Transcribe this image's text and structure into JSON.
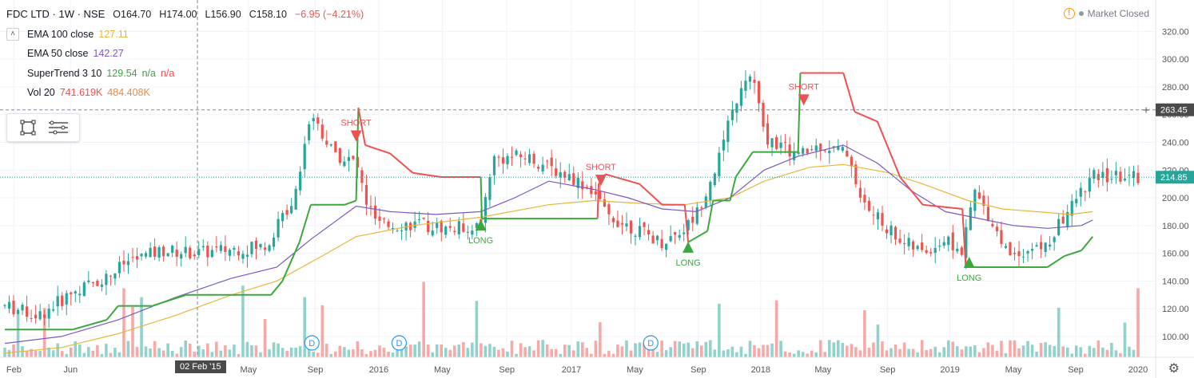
{
  "header": {
    "symbol": "FDC LTD · 1W · NSE",
    "open": "O164.70",
    "high": "H174.00",
    "low": "L156.90",
    "close": "C158.10",
    "change": "−6.95 (−4.21%)"
  },
  "indicators": [
    {
      "label": "EMA 100 close",
      "value": "127.11",
      "color": "#e3b43c"
    },
    {
      "label": "EMA 50 close",
      "value": "142.27",
      "color": "#7e57c2"
    },
    {
      "label": "SuperTrend 3 10",
      "value": "129.54",
      "extra": "n/a",
      "extra2": "n/a",
      "color": "#3ca83c",
      "color2": "#f05050"
    },
    {
      "label": "Vol 20",
      "value": "741.619K",
      "value2": "484.408K",
      "color": "#f05050",
      "color2": "#f0883c"
    }
  ],
  "status": {
    "text": "Market Closed"
  },
  "crosshair": {
    "date_label": "02 Feb '15",
    "price_label": "263.45"
  },
  "colors": {
    "up": "#26a69a",
    "down": "#ef5350",
    "st_up": "#3ca83c",
    "st_down": "#f05050",
    "ema50": "#7e57c2",
    "ema100": "#e8b53a"
  },
  "chart_data": {
    "type": "candlestick",
    "y_ticks": [
      "320.00",
      "300.00",
      "280.00",
      "260.00",
      "240.00",
      "220.00",
      "200.00",
      "180.00",
      "160.00",
      "140.00",
      "120.00",
      "100.00"
    ],
    "ylim": [
      85,
      330
    ],
    "x_ticks": [
      "Feb",
      "Jun",
      "02 Feb '15",
      "May",
      "Sep",
      "2016",
      "May",
      "Sep",
      "2017",
      "May",
      "Sep",
      "2018",
      "May",
      "Sep",
      "2019",
      "May",
      "Sep",
      "2020"
    ],
    "last_price": "214.85",
    "annotations": [
      {
        "text": "SHORT",
        "kind": "short",
        "t": 0.31,
        "price": 244
      },
      {
        "text": "LONG",
        "kind": "long",
        "t": 0.42,
        "price": 181
      },
      {
        "text": "SHORT",
        "kind": "short",
        "t": 0.526,
        "price": 212
      },
      {
        "text": "LONG",
        "kind": "long",
        "t": 0.603,
        "price": 165
      },
      {
        "text": "SHORT",
        "kind": "short",
        "t": 0.705,
        "price": 270
      },
      {
        "text": "LONG",
        "kind": "long",
        "t": 0.851,
        "price": 154
      }
    ],
    "dividend_markers": [
      {
        "text": "D",
        "t": 0.271
      },
      {
        "text": "D",
        "t": 0.348
      },
      {
        "text": "D",
        "t": 0.57
      }
    ],
    "trend_path": [
      [
        0,
        122
      ],
      [
        0.03,
        115
      ],
      [
        0.06,
        132
      ],
      [
        0.09,
        143
      ],
      [
        0.11,
        155
      ],
      [
        0.14,
        162
      ],
      [
        0.17,
        160
      ],
      [
        0.2,
        163
      ],
      [
        0.23,
        165
      ],
      [
        0.255,
        200
      ],
      [
        0.27,
        262
      ],
      [
        0.29,
        232
      ],
      [
        0.31,
        225
      ],
      [
        0.32,
        194
      ],
      [
        0.33,
        180
      ],
      [
        0.36,
        181
      ],
      [
        0.39,
        178
      ],
      [
        0.42,
        180
      ],
      [
        0.43,
        228
      ],
      [
        0.46,
        230
      ],
      [
        0.48,
        222
      ],
      [
        0.5,
        215
      ],
      [
        0.52,
        205
      ],
      [
        0.53,
        188
      ],
      [
        0.56,
        176
      ],
      [
        0.58,
        168
      ],
      [
        0.6,
        178
      ],
      [
        0.61,
        188
      ],
      [
        0.63,
        228
      ],
      [
        0.645,
        270
      ],
      [
        0.66,
        290
      ],
      [
        0.67,
        244
      ],
      [
        0.69,
        235
      ],
      [
        0.7,
        230
      ],
      [
        0.72,
        238
      ],
      [
        0.745,
        232
      ],
      [
        0.755,
        198
      ],
      [
        0.77,
        185
      ],
      [
        0.79,
        170
      ],
      [
        0.81,
        160
      ],
      [
        0.83,
        170
      ],
      [
        0.845,
        160
      ],
      [
        0.855,
        205
      ],
      [
        0.87,
        185
      ],
      [
        0.885,
        160
      ],
      [
        0.9,
        162
      ],
      [
        0.92,
        165
      ],
      [
        0.93,
        180
      ],
      [
        0.95,
        205
      ],
      [
        0.96,
        215
      ]
    ],
    "supertrend": [
      [
        0,
        105
      ],
      [
        0.06,
        105
      ],
      [
        0.09,
        112
      ],
      [
        0.1,
        122
      ],
      [
        0.13,
        122
      ],
      [
        0.16,
        130
      ],
      [
        0.235,
        130
      ],
      [
        0.245,
        140
      ],
      [
        0.26,
        168
      ],
      [
        0.27,
        195
      ],
      [
        0.3,
        195
      ],
      [
        0.31,
        198
      ],
      [
        0.312,
        265
      ],
      [
        0.318,
        238
      ],
      [
        0.34,
        232
      ],
      [
        0.36,
        218
      ],
      [
        0.385,
        215
      ],
      [
        0.42,
        215
      ],
      [
        0.421,
        185
      ],
      [
        0.523,
        185
      ],
      [
        0.524,
        210
      ],
      [
        0.53,
        217
      ],
      [
        0.56,
        210
      ],
      [
        0.58,
        195
      ],
      [
        0.6,
        195
      ],
      [
        0.603,
        168
      ],
      [
        0.62,
        176
      ],
      [
        0.625,
        198
      ],
      [
        0.64,
        198
      ],
      [
        0.645,
        215
      ],
      [
        0.66,
        233
      ],
      [
        0.7,
        233
      ],
      [
        0.702,
        290
      ],
      [
        0.74,
        290
      ],
      [
        0.75,
        262
      ],
      [
        0.77,
        255
      ],
      [
        0.79,
        215
      ],
      [
        0.81,
        195
      ],
      [
        0.845,
        192
      ],
      [
        0.848,
        150
      ],
      [
        0.9,
        150
      ],
      [
        0.92,
        150
      ],
      [
        0.935,
        158
      ],
      [
        0.95,
        162
      ],
      [
        0.96,
        172
      ]
    ],
    "ema50": [
      [
        0,
        95
      ],
      [
        0.05,
        100
      ],
      [
        0.1,
        112
      ],
      [
        0.15,
        128
      ],
      [
        0.2,
        142
      ],
      [
        0.24,
        150
      ],
      [
        0.27,
        170
      ],
      [
        0.31,
        194
      ],
      [
        0.34,
        190
      ],
      [
        0.38,
        188
      ],
      [
        0.42,
        190
      ],
      [
        0.45,
        200
      ],
      [
        0.48,
        212
      ],
      [
        0.52,
        206
      ],
      [
        0.55,
        200
      ],
      [
        0.58,
        192
      ],
      [
        0.61,
        190
      ],
      [
        0.64,
        200
      ],
      [
        0.67,
        220
      ],
      [
        0.7,
        230
      ],
      [
        0.74,
        238
      ],
      [
        0.77,
        225
      ],
      [
        0.8,
        205
      ],
      [
        0.83,
        190
      ],
      [
        0.86,
        185
      ],
      [
        0.89,
        180
      ],
      [
        0.92,
        178
      ],
      [
        0.95,
        180
      ],
      [
        0.96,
        184
      ]
    ],
    "ema100": [
      [
        0,
        88
      ],
      [
        0.05,
        92
      ],
      [
        0.1,
        102
      ],
      [
        0.15,
        115
      ],
      [
        0.2,
        130
      ],
      [
        0.24,
        140
      ],
      [
        0.28,
        158
      ],
      [
        0.31,
        172
      ],
      [
        0.36,
        180
      ],
      [
        0.42,
        186
      ],
      [
        0.48,
        195
      ],
      [
        0.52,
        198
      ],
      [
        0.56,
        196
      ],
      [
        0.6,
        195
      ],
      [
        0.64,
        200
      ],
      [
        0.67,
        212
      ],
      [
        0.71,
        222
      ],
      [
        0.74,
        224
      ],
      [
        0.78,
        218
      ],
      [
        0.81,
        210
      ],
      [
        0.85,
        198
      ],
      [
        0.88,
        192
      ],
      [
        0.91,
        190
      ],
      [
        0.94,
        188
      ],
      [
        0.96,
        190
      ]
    ]
  }
}
